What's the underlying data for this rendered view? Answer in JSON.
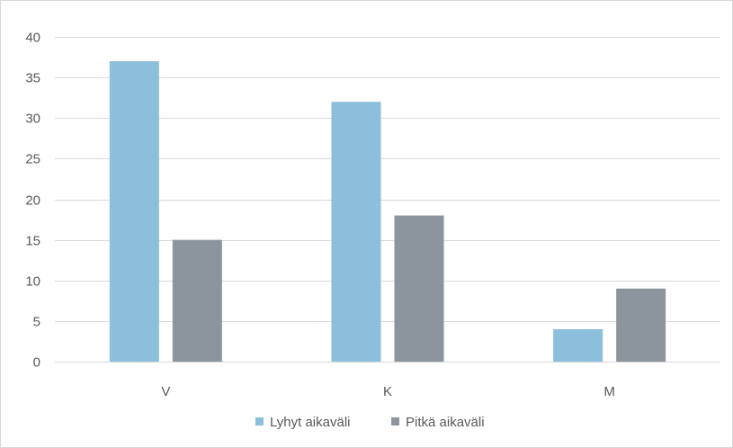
{
  "chart_data": {
    "type": "bar",
    "title": "",
    "xlabel": "",
    "ylabel": "",
    "categories": [
      "V",
      "K",
      "M"
    ],
    "series": [
      {
        "name": "Lyhyt aikaväli",
        "values": [
          37,
          32,
          4
        ],
        "color": "#8bbfdb"
      },
      {
        "name": "Pitkä aikaväli",
        "values": [
          15,
          18,
          9
        ],
        "color": "#8c959d"
      }
    ],
    "ylim": [
      0,
      40
    ],
    "yticks": [
      0,
      5,
      10,
      15,
      20,
      25,
      30,
      35,
      40
    ],
    "grid": true,
    "legend_position": "bottom"
  }
}
